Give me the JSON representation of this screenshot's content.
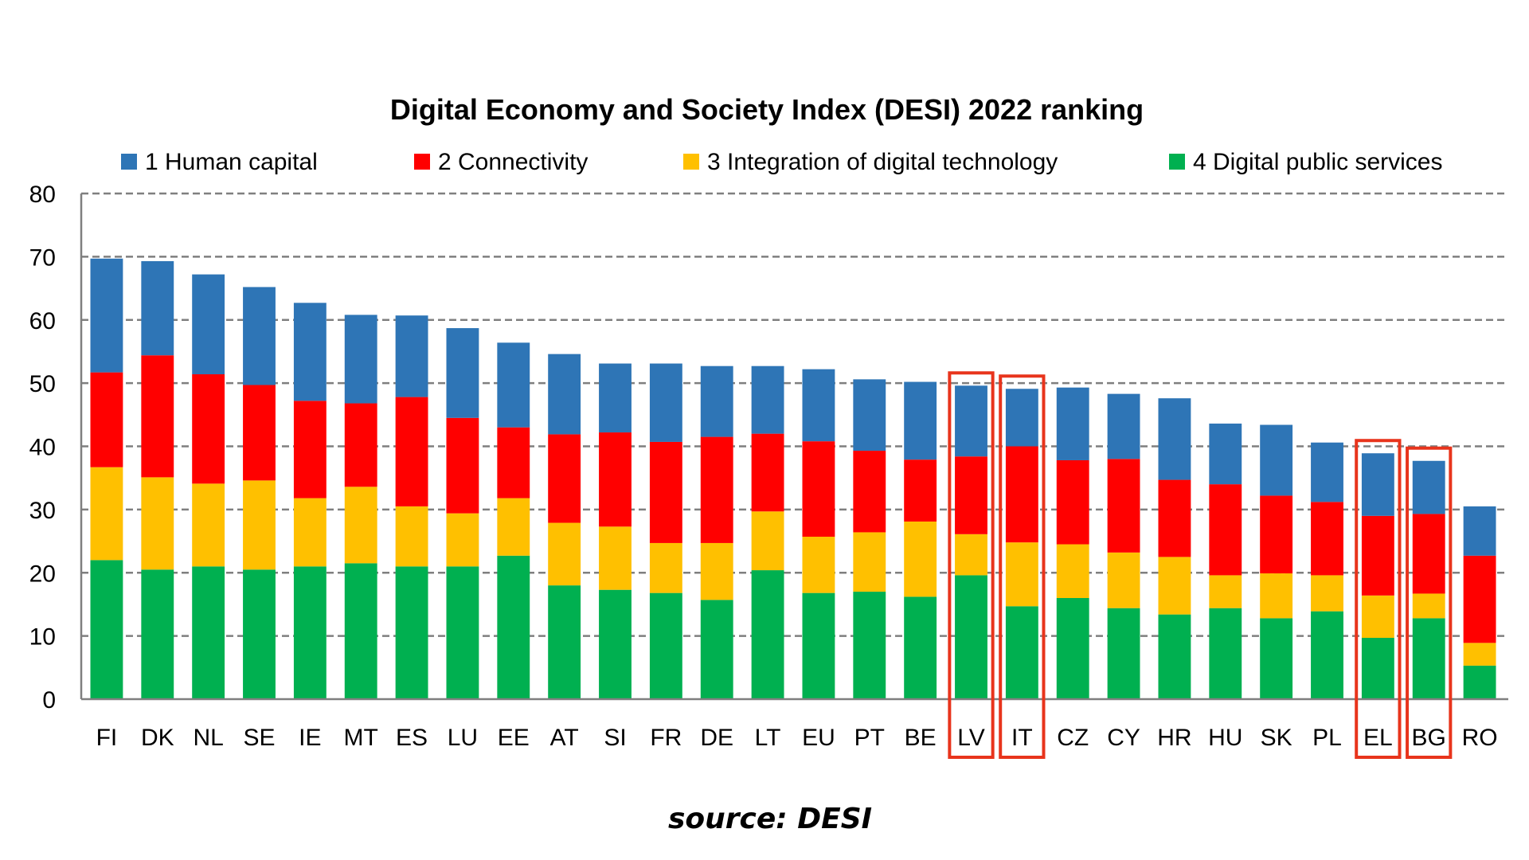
{
  "chart_data": {
    "type": "bar",
    "stacked": true,
    "title": "Digital Economy and Society Index (DESI) 2022 ranking",
    "source": "source: DESI",
    "categories": [
      "FI",
      "DK",
      "NL",
      "SE",
      "IE",
      "MT",
      "ES",
      "LU",
      "EE",
      "AT",
      "SI",
      "FR",
      "DE",
      "LT",
      "EU",
      "PT",
      "BE",
      "LV",
      "IT",
      "CZ",
      "CY",
      "HR",
      "HU",
      "SK",
      "PL",
      "EL",
      "BG",
      "RO"
    ],
    "highlighted": [
      "LV",
      "IT",
      "EL",
      "BG"
    ],
    "highlight_color": "#e8341c",
    "ylim": [
      0,
      80
    ],
    "yticks": [
      0,
      10,
      20,
      30,
      40,
      50,
      60,
      70,
      80
    ],
    "grid": "dashed horizontal",
    "legend_position": "top",
    "series": [
      {
        "name": "4 Digital public services",
        "color": "#00b050",
        "values": [
          22,
          20.5,
          21,
          20.5,
          21,
          21.5,
          21,
          21,
          22.7,
          18,
          17.3,
          16.8,
          15.7,
          20.4,
          16.8,
          17,
          16.2,
          19.6,
          14.7,
          16,
          14.4,
          13.4,
          14.4,
          12.8,
          13.9,
          9.7,
          12.8,
          5.3
        ]
      },
      {
        "name": "3 Integration of digital technology",
        "color": "#ffc000",
        "values": [
          14.7,
          14.6,
          13.1,
          14.1,
          10.8,
          12.1,
          9.5,
          8.4,
          9.1,
          9.9,
          10,
          7.9,
          9,
          9.3,
          8.9,
          9.4,
          11.9,
          6.5,
          10.1,
          8.5,
          8.8,
          9.1,
          5.2,
          7.1,
          5.7,
          6.7,
          3.9,
          3.6
        ]
      },
      {
        "name": "2 Connectivity",
        "color": "#ff0000",
        "values": [
          15,
          19.3,
          17.3,
          15.1,
          15.4,
          13.2,
          17.3,
          15.1,
          11.2,
          14,
          14.9,
          16,
          16.8,
          12.3,
          15.1,
          12.9,
          9.8,
          12.3,
          15.2,
          13.3,
          14.8,
          12.2,
          14.4,
          12.3,
          11.6,
          12.6,
          12.6,
          13.8
        ]
      },
      {
        "name": "1 Human capital",
        "color": "#2e75b6",
        "values": [
          18,
          14.9,
          15.8,
          15.5,
          15.5,
          14,
          12.9,
          14.2,
          13.4,
          12.7,
          10.9,
          12.4,
          11.2,
          10.7,
          11.4,
          11.3,
          12.3,
          11.2,
          9.1,
          11.5,
          10.3,
          12.9,
          9.6,
          11.2,
          9.4,
          9.9,
          8.4,
          7.8
        ]
      }
    ]
  }
}
